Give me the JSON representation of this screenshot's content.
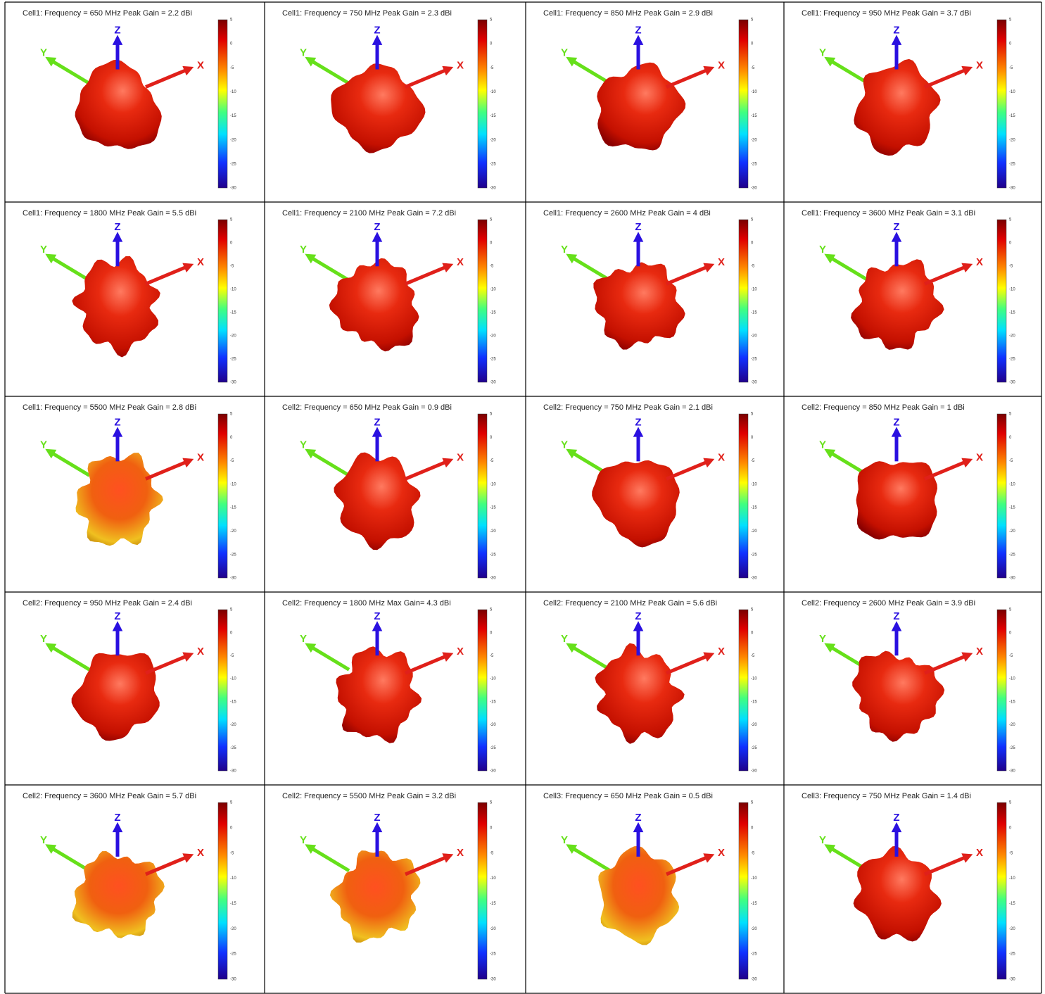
{
  "panels": [
    "Cell1: Frequency = 650 MHz  Peak Gain = 2.2 dBi",
    "Cell1: Frequency = 750 MHz  Peak Gain = 2.3 dBi",
    "Cell1: Frequency = 850 MHz  Peak Gain = 2.9 dBi",
    "Cell1: Frequency = 950 MHz  Peak Gain = 3.7 dBi",
    "Cell1: Frequency = 1800 MHz  Peak Gain = 5.5 dBi",
    "Cell1: Frequency = 2100 MHz  Peak Gain = 7.2 dBi",
    "Cell1: Frequency = 2600 MHz  Peak Gain = 4 dBi",
    "Cell1: Frequency = 3600 MHz  Peak Gain = 3.1 dBi",
    "Cell1: Frequency = 5500 MHz  Peak Gain = 2.8 dBi",
    "Cell2: Frequency = 650 MHz  Peak Gain = 0.9 dBi",
    "Cell2: Frequency = 750 MHz  Peak Gain = 2.1 dBi",
    "Cell2: Frequency = 850 MHz  Peak Gain = 1 dBi",
    "Cell2: Frequency = 950 MHz  Peak Gain = 2.4 dBi",
    "Cell2: Frequency = 1800 MHz  Max Gain= 4.3 dBi",
    "Cell2: Frequency = 2100 MHz  Peak Gain = 5.6 dBi",
    "Cell2: Frequency = 2600 MHz  Peak Gain = 3.9 dBi",
    "Cell2: Frequency = 3600 MHz  Peak Gain = 5.7 dBi",
    "Cell2: Frequency = 5500 MHz  Peak Gain = 3.2 dBi",
    "Cell3: Frequency = 650 MHz  Peak Gain = 0.5 dBi",
    "Cell3: Frequency = 750 MHz  Peak Gain = 1.4 dBi"
  ],
  "axes": {
    "x": "X",
    "y": "Y",
    "z": "Z"
  },
  "colorbar_ticks": [
    5,
    0,
    -5,
    -10,
    -15,
    -20,
    -25,
    -30
  ]
}
